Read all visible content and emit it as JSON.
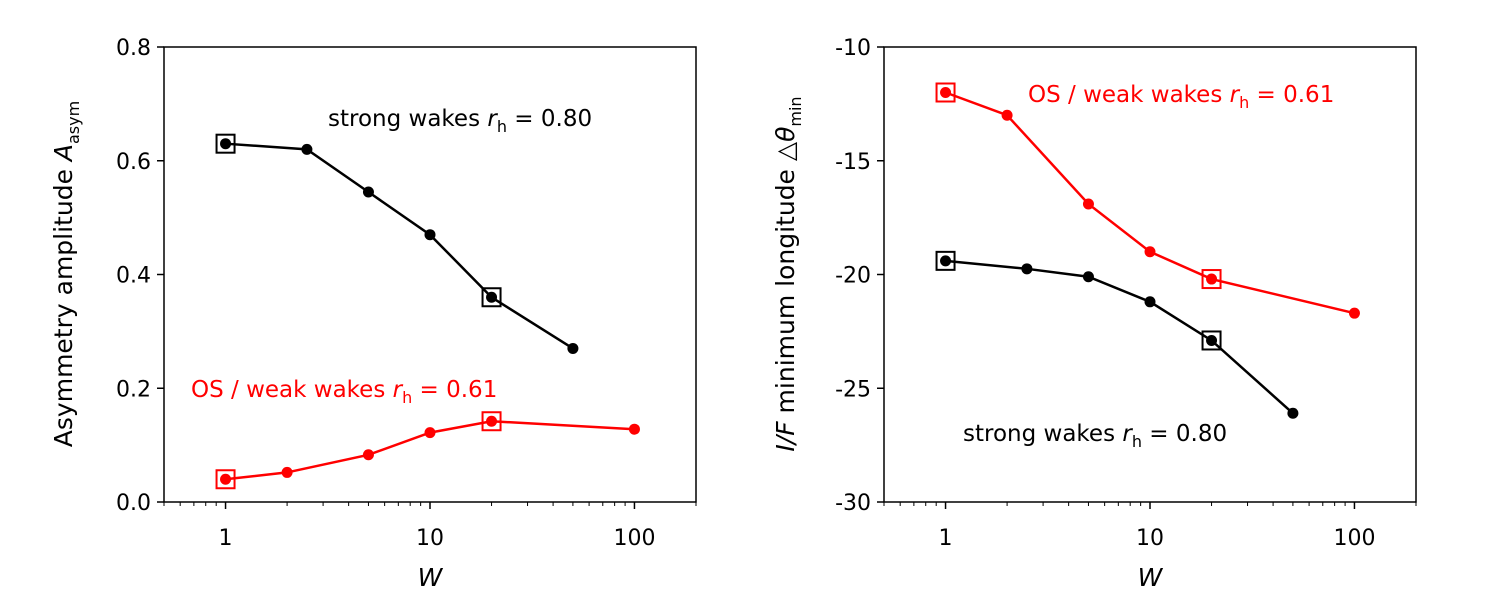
{
  "chart_data": [
    {
      "type": "line",
      "xlabel": "W",
      "ylabel_main": "Asymmetry amplitude ",
      "ylabel_sym": "A",
      "ylabel_sub": "asym",
      "xscale": "log",
      "xlim": [
        0.5,
        200
      ],
      "ylim": [
        0.0,
        0.8
      ],
      "xticks": [
        1,
        10,
        100
      ],
      "xtick_labels": [
        "1",
        "10",
        "100"
      ],
      "yticks": [
        0.0,
        0.2,
        0.4,
        0.6,
        0.8
      ],
      "ytick_labels": [
        "0.0",
        "0.2",
        "0.4",
        "0.6",
        "0.8"
      ],
      "series": [
        {
          "color": "#000000",
          "x": [
            1,
            2.5,
            5,
            10,
            20,
            50
          ],
          "y": [
            0.63,
            0.62,
            0.545,
            0.47,
            0.36,
            0.27
          ],
          "boxed_x": [
            1,
            20
          ],
          "boxed_y": [
            0.63,
            0.36
          ]
        },
        {
          "color": "#ff0000",
          "x": [
            1,
            2,
            5,
            10,
            20,
            100
          ],
          "y": [
            0.04,
            0.052,
            0.083,
            0.122,
            0.142,
            0.128
          ],
          "boxed_x": [
            1,
            20
          ],
          "boxed_y": [
            0.04,
            0.142
          ]
        }
      ],
      "annotations": [
        {
          "color": "#000000",
          "pre": "strong wakes ",
          "sym": "r",
          "sub": "h",
          "post": " = 0.80"
        },
        {
          "color": "#ff0000",
          "pre": "OS / weak wakes ",
          "sym": "r",
          "sub": "h",
          "post": " = 0.61"
        }
      ]
    },
    {
      "type": "line",
      "xlabel": "W",
      "ylabel_main": " minimum longitude ",
      "ylabel_pre": "I/F",
      "ylabel_sym": "△θ",
      "ylabel_sub": "min",
      "xscale": "log",
      "xlim": [
        0.5,
        200
      ],
      "ylim": [
        -30,
        -10
      ],
      "xticks": [
        1,
        10,
        100
      ],
      "xtick_labels": [
        "1",
        "10",
        "100"
      ],
      "yticks": [
        -30,
        -25,
        -20,
        -15,
        -10
      ],
      "ytick_labels": [
        "-30",
        "-25",
        "-20",
        "-15",
        "-10"
      ],
      "series": [
        {
          "color": "#000000",
          "x": [
            1,
            2.5,
            5,
            10,
            20,
            50
          ],
          "y": [
            -19.4,
            -19.75,
            -20.1,
            -21.2,
            -22.9,
            -26.1
          ],
          "boxed_x": [
            1,
            20
          ],
          "boxed_y": [
            -19.4,
            -22.9
          ]
        },
        {
          "color": "#ff0000",
          "x": [
            1,
            2,
            5,
            10,
            20,
            100
          ],
          "y": [
            -12.0,
            -13.0,
            -16.9,
            -19.0,
            -20.2,
            -21.7
          ],
          "boxed_x": [
            1,
            20
          ],
          "boxed_y": [
            -12.0,
            -20.2
          ]
        }
      ],
      "annotations": [
        {
          "color": "#ff0000",
          "pre": "OS / weak wakes ",
          "sym": "r",
          "sub": "h",
          "post": " = 0.61"
        },
        {
          "color": "#000000",
          "pre": "strong wakes ",
          "sym": "r",
          "sub": "h",
          "post": " = 0.80"
        }
      ]
    }
  ]
}
